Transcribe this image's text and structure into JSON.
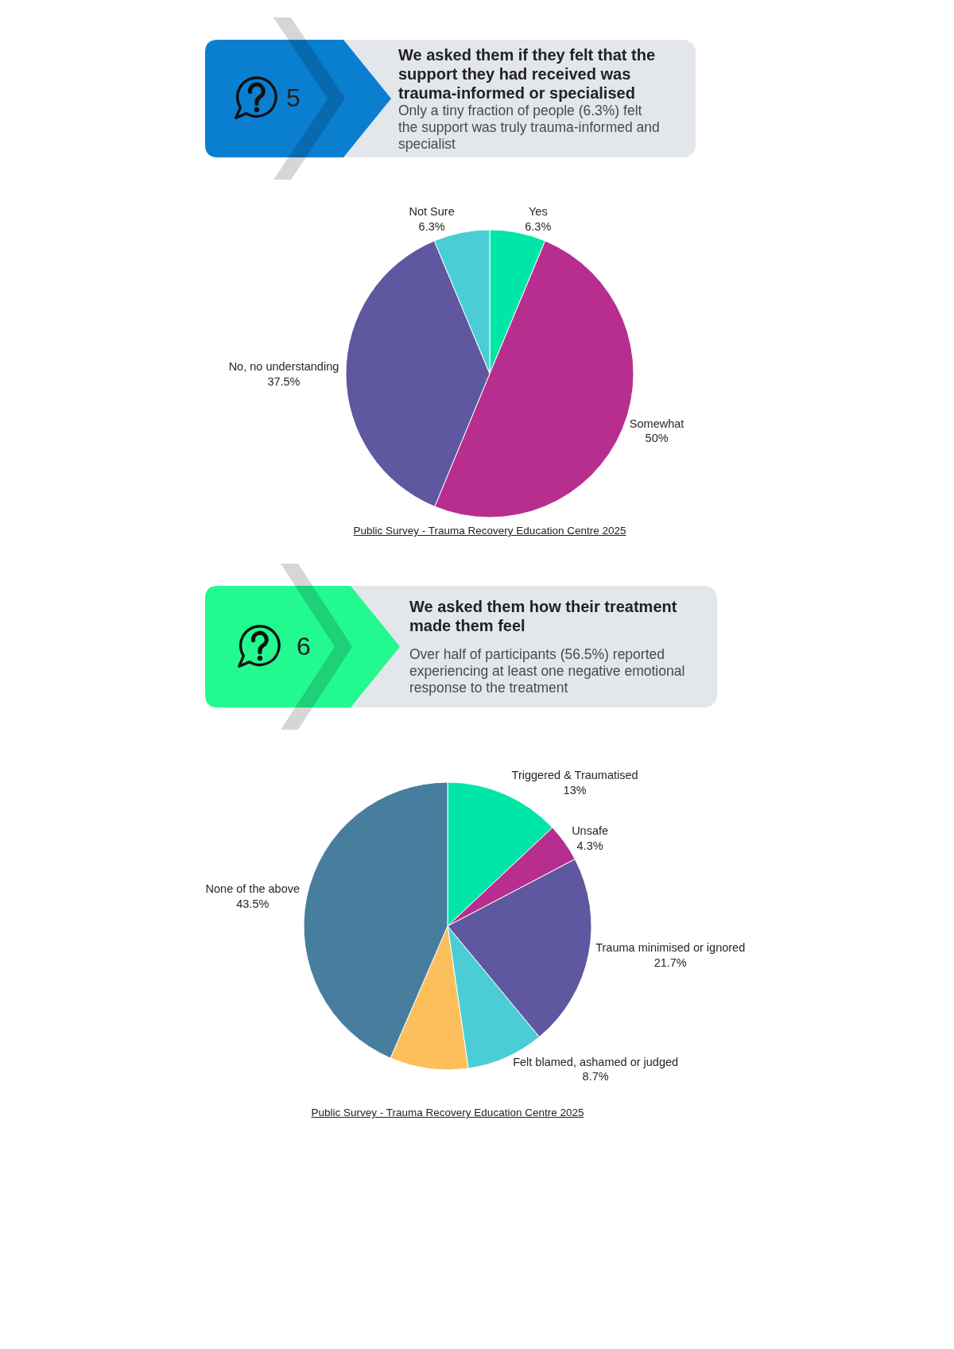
{
  "chart_data": [
    {
      "type": "pie",
      "title": "We asked them if they felt that the support they had received was trauma-informed or specialised",
      "subtitle": "Only a tiny fraction of people (6.3%) felt the support was truly trauma-informed and specialist",
      "categories": [
        "Yes",
        "Somewhat",
        "No, no understanding",
        "Not Sure"
      ],
      "values": [
        6.3,
        50,
        37.5,
        6.3
      ],
      "value_labels": [
        "6.3%",
        "50%",
        "37.5%",
        "6.3%"
      ],
      "colors": [
        "#00e6a8",
        "#b82e8e",
        "#5f58a0",
        "#4bcdd5"
      ],
      "annotations": [
        "5",
        "Public Survey - Trauma Recovery Education Centre 2025"
      ],
      "legend": false
    },
    {
      "type": "pie",
      "title": "We asked them how their treatment made them feel",
      "subtitle": "Over half of participants (56.5%) reported experiencing at least one negative emotional response to the treatment",
      "categories": [
        "Triggered & Traumatised",
        "Unsafe",
        "Trauma minimised or ignored",
        "Felt blamed, ashamed or judged",
        null,
        "None of the above"
      ],
      "values": [
        13,
        4.3,
        21.7,
        8.7,
        8.8,
        43.5
      ],
      "value_labels": [
        "13%",
        "4.3%",
        "21.7%",
        "8.7%",
        null,
        "43.5%"
      ],
      "colors": [
        "#00e6a8",
        "#b82e8e",
        "#5f58a0",
        "#4bcdd5",
        "#fdbf5b",
        "#477e9e"
      ],
      "annotations": [
        "6",
        "Public Survey - Trauma Recovery Education Centre 2025"
      ],
      "legend": false
    }
  ]
}
